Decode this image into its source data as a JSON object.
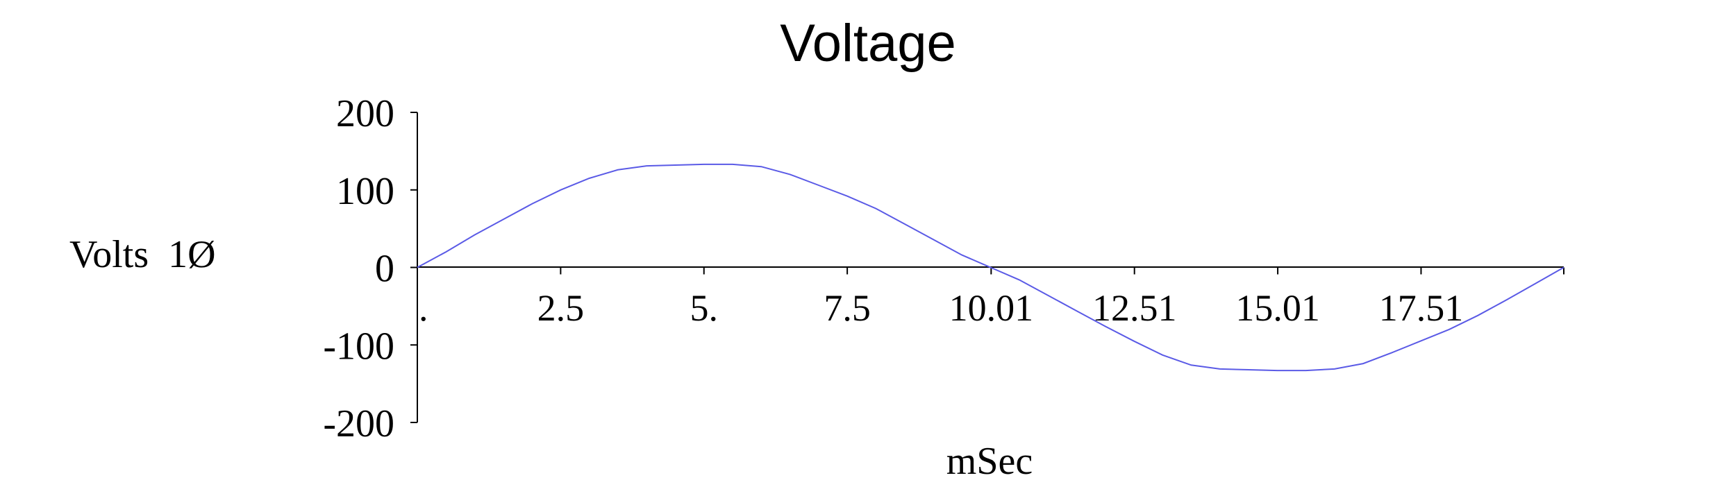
{
  "chart_data": {
    "type": "line",
    "title": "Voltage",
    "xlabel": "mSec",
    "ylabel": "Volts  1Ø",
    "ylim": [
      -200,
      200
    ],
    "xlim": [
      0,
      20
    ],
    "y_ticks": [
      200,
      100,
      0,
      -100,
      -200
    ],
    "y_tick_labels": [
      "200",
      "100",
      "0",
      "-100",
      "-200"
    ],
    "x_ticks": [
      0,
      2.5,
      5,
      7.5,
      10.01,
      12.51,
      15.01,
      17.51,
      20
    ],
    "x_tick_labels": [
      ".",
      "2.5",
      "5.",
      "7.5",
      "10.01",
      "12.51",
      "15.01",
      "17.51",
      ""
    ],
    "grid": false,
    "legend": "none",
    "series": [
      {
        "color": "#5a5ae6",
        "x": [
          0,
          0.5,
          1,
          1.5,
          2,
          2.5,
          3,
          3.5,
          4,
          4.5,
          5,
          5.5,
          6,
          6.5,
          7,
          7.5,
          8,
          8.5,
          9,
          9.5,
          10,
          10.5,
          11,
          11.5,
          12,
          12.5,
          13,
          13.5,
          14,
          14.5,
          15,
          15.5,
          16,
          16.5,
          17,
          17.5,
          18,
          18.5,
          19,
          19.5,
          20
        ],
        "values": [
          0,
          20,
          42,
          62,
          82,
          100,
          115,
          126,
          131,
          132,
          133,
          133,
          130,
          120,
          106,
          92,
          76,
          56,
          36,
          16,
          0,
          -16,
          -36,
          -56,
          -76,
          -95,
          -113,
          -126,
          -131,
          -132,
          -133,
          -133,
          -131,
          -124,
          -110,
          -95,
          -80,
          -62,
          -42,
          -21,
          0
        ]
      }
    ]
  }
}
